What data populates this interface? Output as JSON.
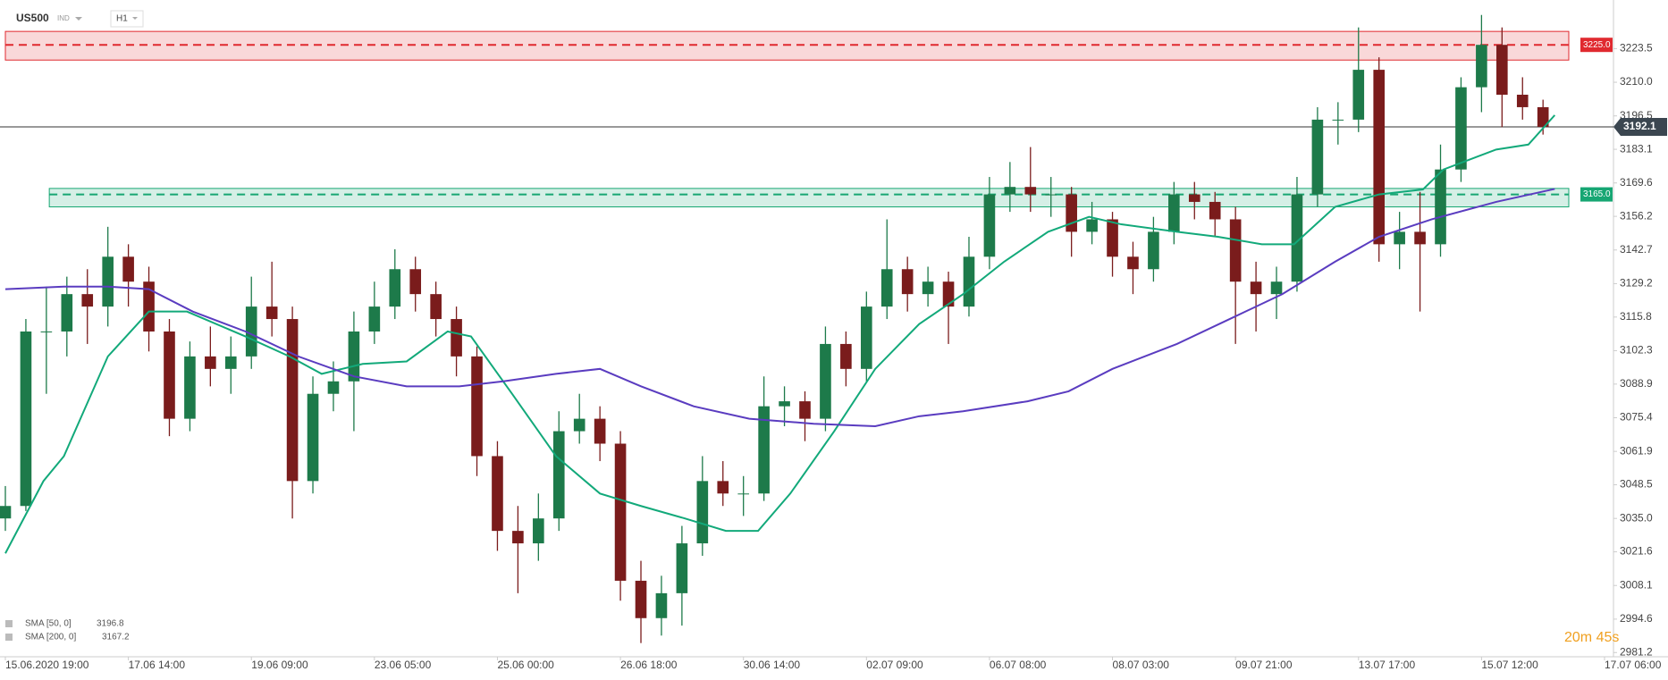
{
  "header": {
    "symbol": "US500",
    "market": "IND",
    "interval": "H1"
  },
  "timer": "20m 45s",
  "chart_data": {
    "type": "candlestick",
    "candle_hours": 7,
    "xlim": [
      0,
      546
    ],
    "xticks": [
      {
        "value": 0,
        "label": "15.06.2020  19:00"
      },
      {
        "value": 42,
        "label": "17.06  14:00"
      },
      {
        "value": 84,
        "label": "19.06  09:00"
      },
      {
        "value": 126,
        "label": "23.06  05:00"
      },
      {
        "value": 168,
        "label": "25.06  00:00"
      },
      {
        "value": 210,
        "label": "26.06  18:00"
      },
      {
        "value": 252,
        "label": "30.06  14:00"
      },
      {
        "value": 294,
        "label": "02.07  09:00"
      },
      {
        "value": 336,
        "label": "06.07  08:00"
      },
      {
        "value": 378,
        "label": "08.07  03:00"
      },
      {
        "value": 420,
        "label": "09.07  21:00"
      },
      {
        "value": 462,
        "label": "13.07  17:00"
      },
      {
        "value": 504,
        "label": "15.07  12:00"
      },
      {
        "value": 546,
        "label": "17.07  06:00"
      }
    ],
    "ylim": [
      2979.5,
      3243
    ],
    "yticks": [
      3223.5,
      {
        "value": 3210,
        "label": "3210.0"
      },
      3196.5,
      3183.1,
      3169.6,
      3156.2,
      3142.7,
      3129.2,
      3115.8,
      3102.3,
      3088.9,
      3075.4,
      3061.9,
      3048.5,
      {
        "value": 3035,
        "label": "3035.0"
      },
      3021.6,
      3008.1,
      2994.6,
      2981.2
    ],
    "up_color": "#1d7a4a",
    "down_color": "#7a1c1c",
    "ohlc": [
      [
        3035,
        3048,
        3030,
        3040
      ],
      [
        3040,
        3115,
        3038,
        3110
      ],
      [
        3110,
        3128,
        3085,
        3110
      ],
      [
        3110,
        3132,
        3100,
        3125
      ],
      [
        3125,
        3135,
        3105,
        3120
      ],
      [
        3120,
        3152,
        3112,
        3140
      ],
      [
        3140,
        3145,
        3120,
        3130
      ],
      [
        3130,
        3136,
        3102,
        3110
      ],
      [
        3110,
        3115,
        3068,
        3075
      ],
      [
        3075,
        3106,
        3070,
        3100
      ],
      [
        3100,
        3112,
        3088,
        3095
      ],
      [
        3095,
        3108,
        3085,
        3100
      ],
      [
        3100,
        3132,
        3095,
        3120
      ],
      [
        3120,
        3138,
        3108,
        3115
      ],
      [
        3115,
        3120,
        3035,
        3050
      ],
      [
        3050,
        3092,
        3045,
        3085
      ],
      [
        3085,
        3098,
        3078,
        3090
      ],
      [
        3090,
        3118,
        3070,
        3110
      ],
      [
        3110,
        3130,
        3105,
        3120
      ],
      [
        3120,
        3143,
        3115,
        3135
      ],
      [
        3135,
        3140,
        3118,
        3125
      ],
      [
        3125,
        3130,
        3108,
        3115
      ],
      [
        3115,
        3120,
        3092,
        3100
      ],
      [
        3100,
        3104,
        3052,
        3060
      ],
      [
        3060,
        3066,
        3022,
        3030
      ],
      [
        3030,
        3040,
        3005,
        3025
      ],
      [
        3025,
        3045,
        3018,
        3035
      ],
      [
        3035,
        3078,
        3030,
        3070
      ],
      [
        3070,
        3085,
        3065,
        3075
      ],
      [
        3075,
        3080,
        3058,
        3065
      ],
      [
        3065,
        3070,
        3002,
        3010
      ],
      [
        3010,
        3018,
        2985,
        2995
      ],
      [
        2995,
        3012,
        2988,
        3005
      ],
      [
        3005,
        3032,
        2992,
        3025
      ],
      [
        3025,
        3060,
        3020,
        3050
      ],
      [
        3050,
        3058,
        3040,
        3045
      ],
      [
        3045,
        3052,
        3036,
        3045
      ],
      [
        3045,
        3092,
        3042,
        3080
      ],
      [
        3080,
        3088,
        3072,
        3082
      ],
      [
        3082,
        3086,
        3066,
        3075
      ],
      [
        3075,
        3112,
        3070,
        3105
      ],
      [
        3105,
        3110,
        3088,
        3095
      ],
      [
        3095,
        3126,
        3090,
        3120
      ],
      [
        3120,
        3155,
        3115,
        3135
      ],
      [
        3135,
        3140,
        3118,
        3125
      ],
      [
        3125,
        3136,
        3120,
        3130
      ],
      [
        3130,
        3134,
        3105,
        3120
      ],
      [
        3120,
        3148,
        3116,
        3140
      ],
      [
        3140,
        3172,
        3135,
        3165
      ],
      [
        3165,
        3178,
        3158,
        3168
      ],
      [
        3168,
        3184,
        3158,
        3165
      ],
      [
        3165,
        3172,
        3156,
        3165
      ],
      [
        3165,
        3168,
        3140,
        3150
      ],
      [
        3150,
        3162,
        3145,
        3155
      ],
      [
        3155,
        3158,
        3132,
        3140
      ],
      [
        3140,
        3146,
        3125,
        3135
      ],
      [
        3135,
        3156,
        3130,
        3150
      ],
      [
        3150,
        3170,
        3145,
        3165
      ],
      [
        3165,
        3170,
        3155,
        3162
      ],
      [
        3162,
        3166,
        3148,
        3155
      ],
      [
        3155,
        3160,
        3105,
        3130
      ],
      [
        3130,
        3138,
        3110,
        3125
      ],
      [
        3125,
        3136,
        3115,
        3130
      ],
      [
        3130,
        3172,
        3126,
        3165
      ],
      [
        3165,
        3200,
        3160,
        3195
      ],
      [
        3195,
        3202,
        3185,
        3195
      ],
      [
        3195,
        3232,
        3190,
        3215
      ],
      [
        3215,
        3220,
        3138,
        3145
      ],
      [
        3145,
        3158,
        3135,
        3150
      ],
      [
        3150,
        3166,
        3118,
        3145
      ],
      [
        3145,
        3185,
        3140,
        3175
      ],
      [
        3175,
        3212,
        3170,
        3208
      ],
      [
        3208,
        3237,
        3198,
        3225
      ],
      [
        3225,
        3232,
        3192,
        3205
      ],
      [
        3205,
        3212,
        3195,
        3200
      ],
      [
        3200,
        3203,
        3189,
        3192.1
      ]
    ],
    "series": [
      {
        "name": "SMA [50, 0]",
        "last": 3196.8,
        "color": "#12a97a",
        "x": [
          0,
          13,
          20,
          35,
          49,
          62,
          82,
          97,
          108,
          122,
          137,
          151,
          159,
          173,
          188,
          203,
          217,
          232,
          246,
          257,
          268,
          283,
          297,
          312,
          327,
          341,
          356,
          370,
          381,
          400,
          414,
          429,
          440,
          454,
          469,
          484,
          491,
          509,
          520,
          529
        ],
        "values": [
          3021,
          3050,
          3060,
          3100,
          3118,
          3118,
          3108,
          3100,
          3093,
          3097,
          3098,
          3110,
          3108,
          3085,
          3060,
          3045,
          3040,
          3035,
          3030,
          3030,
          3045,
          3070,
          3095,
          3113,
          3125,
          3138,
          3150,
          3156,
          3153,
          3150,
          3148,
          3145,
          3145,
          3160,
          3165,
          3167,
          3175,
          3183,
          3185,
          3196.8
        ]
      },
      {
        "name": "SMA [200, 0]",
        "last": 3167.2,
        "color": "#5a3cc0",
        "x": [
          0,
          20,
          35,
          49,
          64,
          82,
          100,
          119,
          137,
          155,
          170,
          188,
          203,
          217,
          235,
          254,
          276,
          297,
          312,
          327,
          349,
          363,
          378,
          400,
          418,
          436,
          454,
          469,
          487,
          509,
          529
        ],
        "values": [
          3127,
          3128,
          3128,
          3127,
          3118,
          3110,
          3100,
          3092,
          3088,
          3088,
          3090,
          3093,
          3095,
          3088,
          3080,
          3075,
          3073,
          3072,
          3076,
          3078,
          3082,
          3086,
          3095,
          3105,
          3115,
          3125,
          3138,
          3148,
          3155,
          3162,
          3167.2
        ]
      }
    ],
    "zones": [
      {
        "level": {
          "value": 3225,
          "label": "3225.0"
        },
        "range": [
          3218.9,
          3230.4
        ],
        "start": 0,
        "color": "#e0292f"
      },
      {
        "level": {
          "value": 3165,
          "label": "3165.0"
        },
        "range": [
          3160,
          3167.4
        ],
        "start": 15,
        "color": "#17a673"
      }
    ],
    "current_price": 3192.1
  }
}
